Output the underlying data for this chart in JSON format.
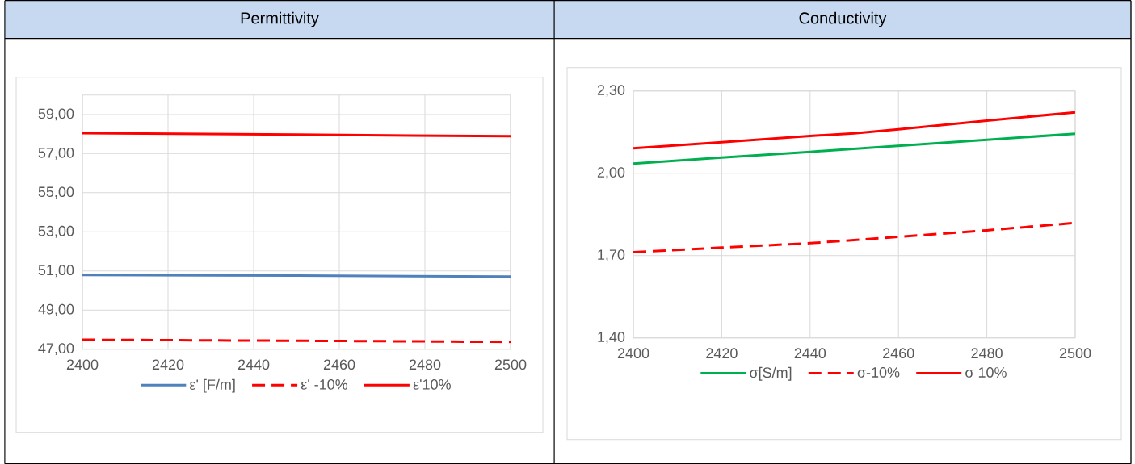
{
  "chart_data": [
    {
      "type": "line",
      "title": "Permittivity",
      "xlim": [
        2400,
        2500
      ],
      "xticks": [
        2400,
        2420,
        2440,
        2460,
        2480,
        2500
      ],
      "ylim": [
        47,
        60
      ],
      "yticks": [
        {
          "value": 47,
          "label": "47,00"
        },
        {
          "value": 49,
          "label": "49,00"
        },
        {
          "value": 51,
          "label": "51,00"
        },
        {
          "value": 53,
          "label": "53,00"
        },
        {
          "value": 55,
          "label": "55,00"
        },
        {
          "value": 57,
          "label": "57,00"
        },
        {
          "value": 59,
          "label": "59,00"
        }
      ],
      "grid": true,
      "legend": "bottom",
      "marker": "none",
      "series": [
        {
          "name": "ε' [F/m]",
          "color": "#4f81bd",
          "line_style": "solid",
          "x": [
            2400,
            2450,
            2500
          ],
          "values": [
            50.79,
            50.76,
            50.71
          ]
        },
        {
          "name": "ε' -10%",
          "color": "#ff0000",
          "line_style": "dashed",
          "x": [
            2400,
            2450,
            2500
          ],
          "values": [
            47.48,
            47.43,
            47.37
          ]
        },
        {
          "name": "ε'10%",
          "color": "#ff0000",
          "line_style": "solid",
          "x": [
            2400,
            2450,
            2500
          ],
          "values": [
            58.05,
            57.97,
            57.89
          ]
        }
      ]
    },
    {
      "type": "line",
      "title": "Conductivity",
      "xlim": [
        2400,
        2500
      ],
      "xticks": [
        2400,
        2420,
        2440,
        2460,
        2480,
        2500
      ],
      "ylim": [
        1.4,
        2.3
      ],
      "yticks": [
        {
          "value": 1.4,
          "label": "1,40"
        },
        {
          "value": 1.7,
          "label": "1,70"
        },
        {
          "value": 2.0,
          "label": "2,00"
        },
        {
          "value": 2.3,
          "label": "2,30"
        }
      ],
      "grid": true,
      "legend": "bottom",
      "marker": "none",
      "series": [
        {
          "name": "σ[S/m]",
          "color": "#00b050",
          "line_style": "solid",
          "x": [
            2400,
            2420,
            2440,
            2460,
            2480,
            2500
          ],
          "values": [
            2.035,
            2.057,
            2.078,
            2.1,
            2.122,
            2.144
          ]
        },
        {
          "name": "σ-10%",
          "color": "#ff0000",
          "line_style": "dashed",
          "x": [
            2400,
            2420,
            2440,
            2460,
            2480,
            2500
          ],
          "values": [
            1.712,
            1.729,
            1.745,
            1.768,
            1.792,
            1.819
          ]
        },
        {
          "name": "σ 10%",
          "color": "#ff0000",
          "line_style": "solid",
          "x": [
            2400,
            2420,
            2440,
            2450,
            2460,
            2480,
            2500
          ],
          "values": [
            2.091,
            2.113,
            2.136,
            2.145,
            2.16,
            2.192,
            2.222
          ]
        }
      ]
    }
  ]
}
